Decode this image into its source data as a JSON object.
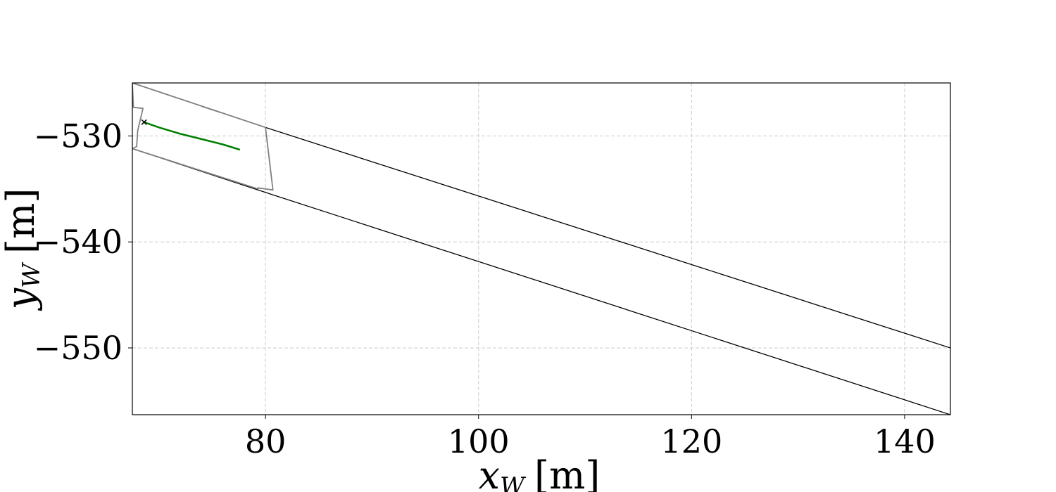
{
  "chart_data": {
    "type": "line",
    "title": "",
    "xlabel": "x_W [m]",
    "ylabel": "y_W [m]",
    "xlabel_parts": {
      "var": "x",
      "sub": "W",
      "unit": "[m]"
    },
    "ylabel_parts": {
      "var": "y",
      "sub": "W",
      "unit": "[m]"
    },
    "xlim": [
      67.5,
      144.3
    ],
    "ylim": [
      -556.3,
      -525.0
    ],
    "xticks": [
      80,
      100,
      120,
      140
    ],
    "xtick_labels": [
      "80",
      "100",
      "120",
      "140"
    ],
    "yticks": [
      -530,
      -540,
      -550
    ],
    "ytick_labels": [
      "−530",
      "−540",
      "−550"
    ],
    "grid": true,
    "legend": "none",
    "series": [
      {
        "role": "road-boundary-upper",
        "color": "#000000",
        "x": [
          67.5,
          80.0,
          144.3
        ],
        "y": [
          -525.0,
          -529.2,
          -550.0
        ]
      },
      {
        "role": "road-boundary-lower",
        "color": "#000000",
        "x": [
          67.5,
          79.3,
          144.3
        ],
        "y": [
          -531.2,
          -535.1,
          -556.3
        ]
      },
      {
        "role": "region-outline",
        "color": "#808080",
        "x": [
          67.5,
          67.6,
          68.5,
          68.0,
          67.9,
          67.5,
          79.3,
          79.3,
          80.7,
          80.0,
          67.5
        ],
        "y": [
          -525.0,
          -527.3,
          -527.4,
          -529.5,
          -531.0,
          -531.2,
          -535.0,
          -534.9,
          -535.1,
          -529.2,
          -525.0
        ]
      },
      {
        "role": "region-inner-edge",
        "color": "#808080",
        "x": [
          74.0,
          75.8
        ],
        "y": [
          -527.2,
          -527.8
        ]
      },
      {
        "role": "trajectory",
        "color": "#008000",
        "x": [
          68.6,
          70.0,
          72.0,
          74.0,
          76.0,
          77.6
        ],
        "y": [
          -528.7,
          -529.2,
          -529.8,
          -530.3,
          -530.8,
          -531.3
        ]
      },
      {
        "role": "start-marker",
        "marker": "x",
        "color": "#000000",
        "x": [
          68.6
        ],
        "y": [
          -528.7
        ]
      }
    ]
  }
}
